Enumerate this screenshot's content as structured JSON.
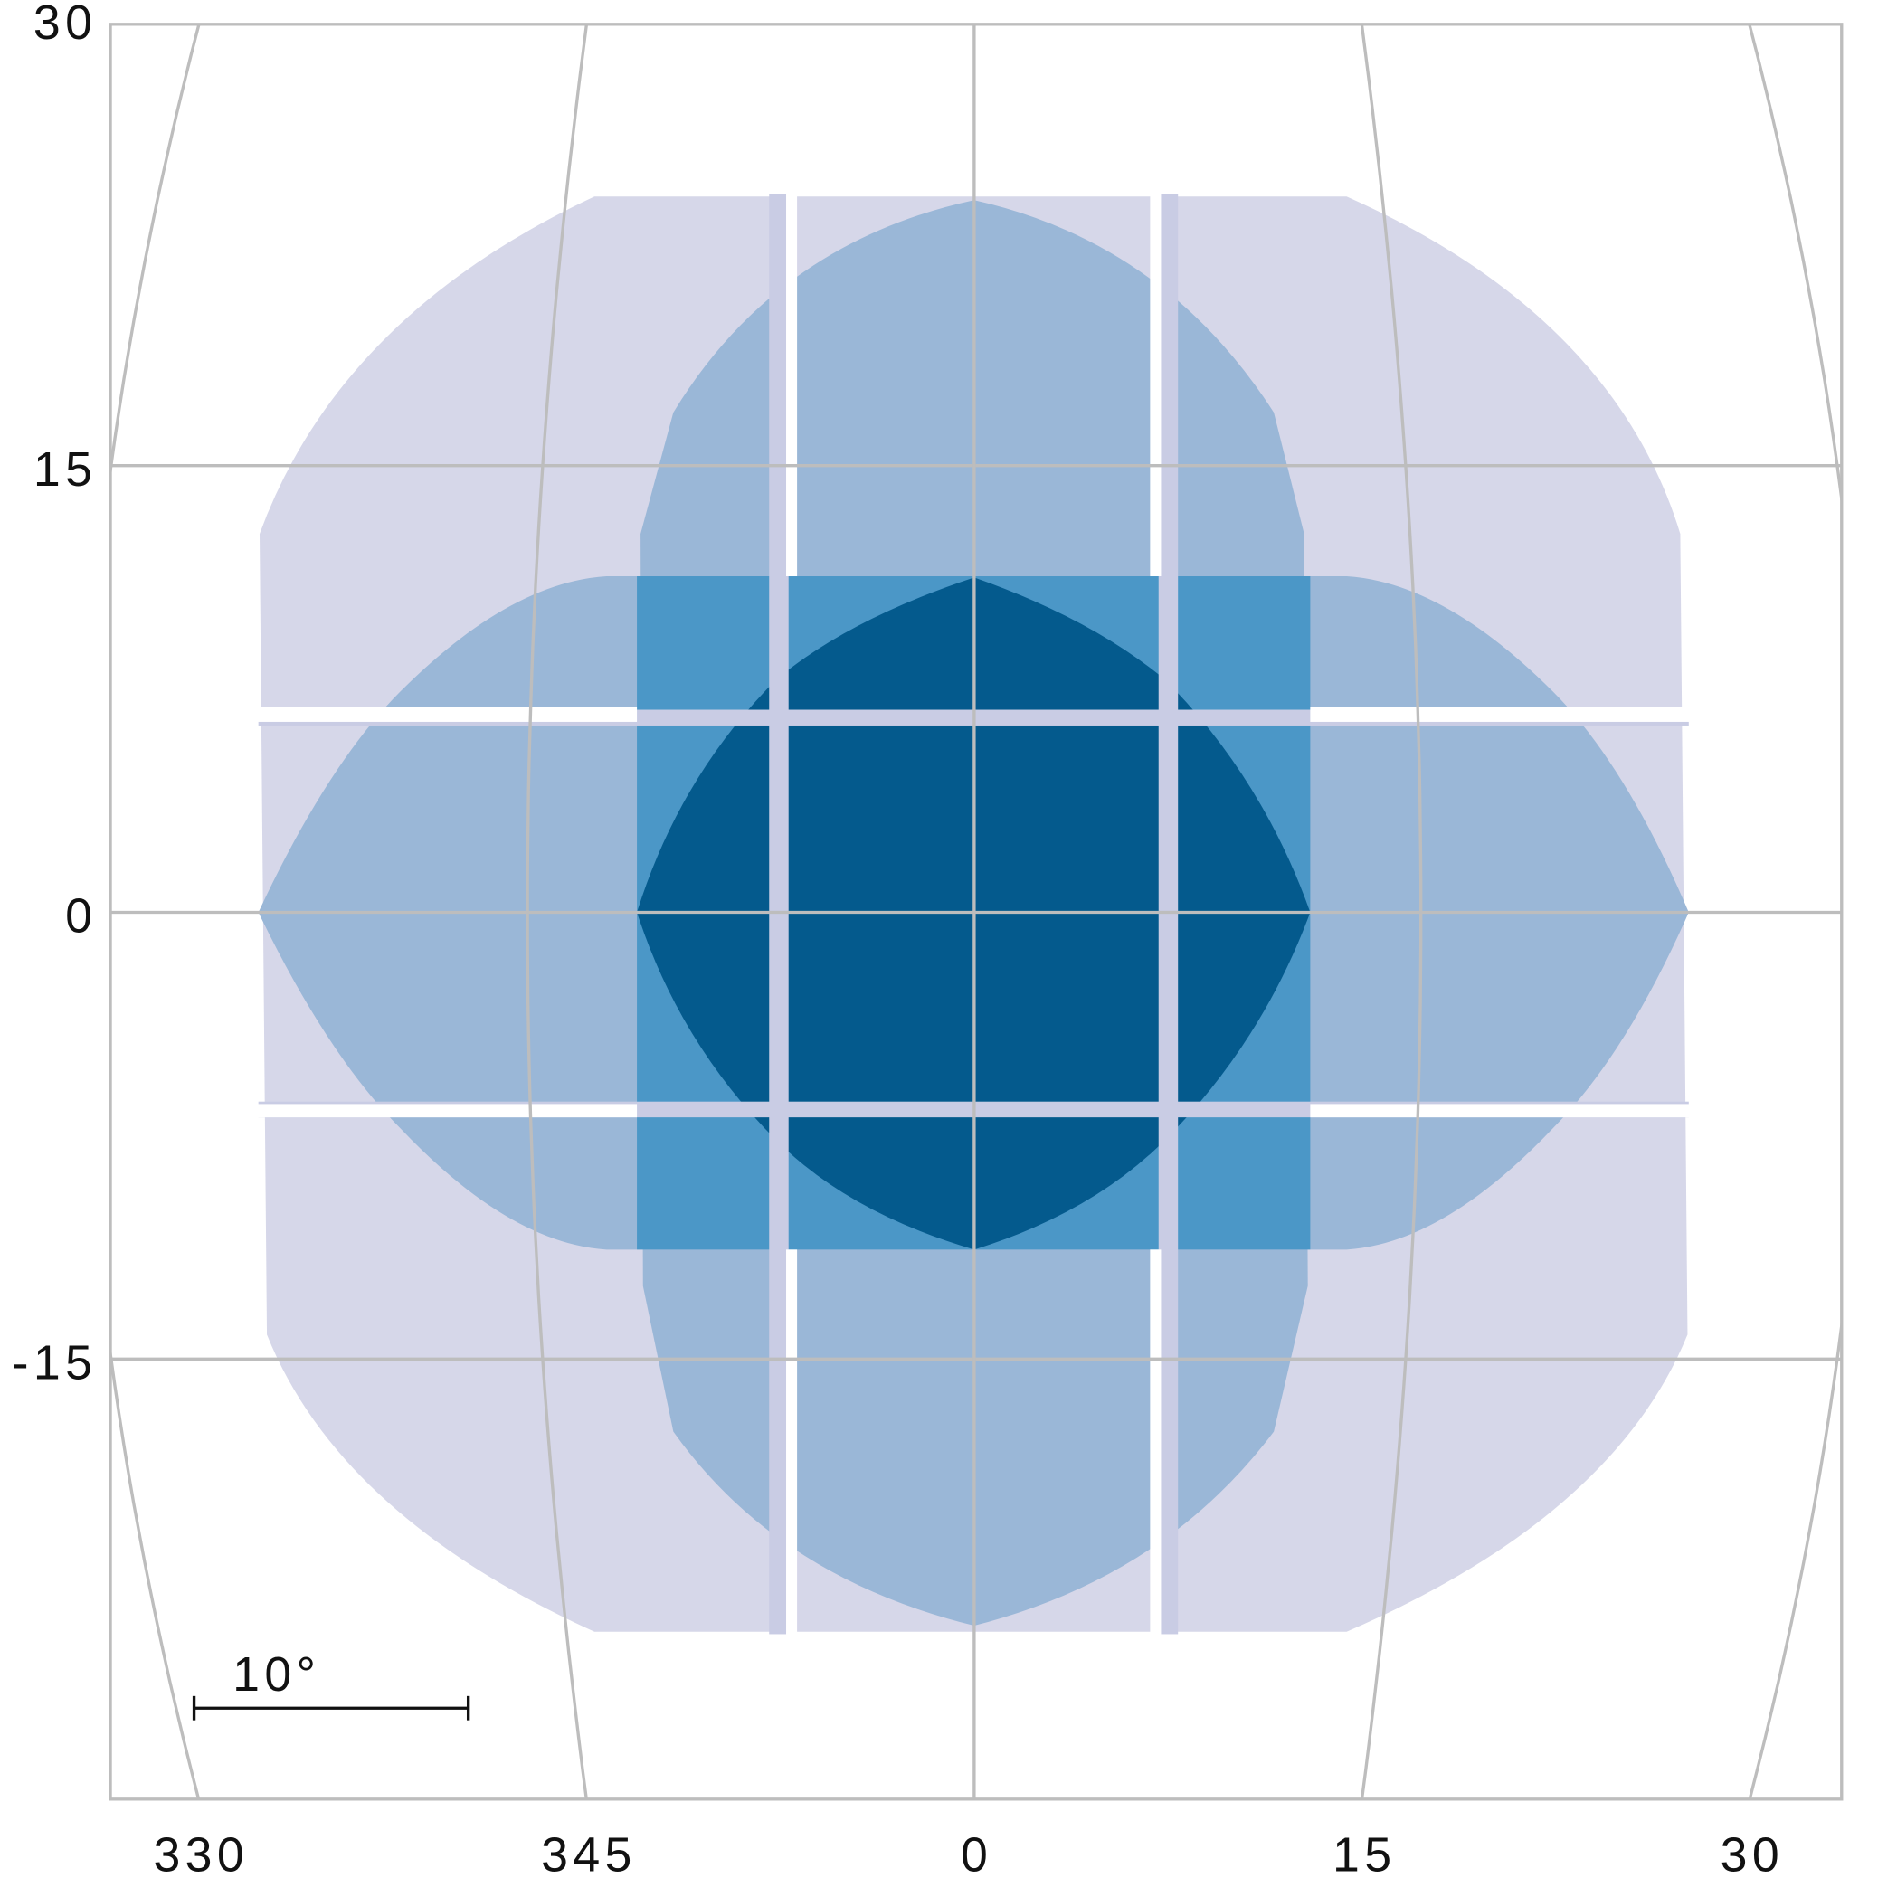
{
  "map": {
    "lon_ticks": [
      330,
      345,
      0,
      15,
      30
    ],
    "lat_ticks": [
      30,
      15,
      0,
      -15
    ],
    "scale_bar_label": "10°"
  }
}
